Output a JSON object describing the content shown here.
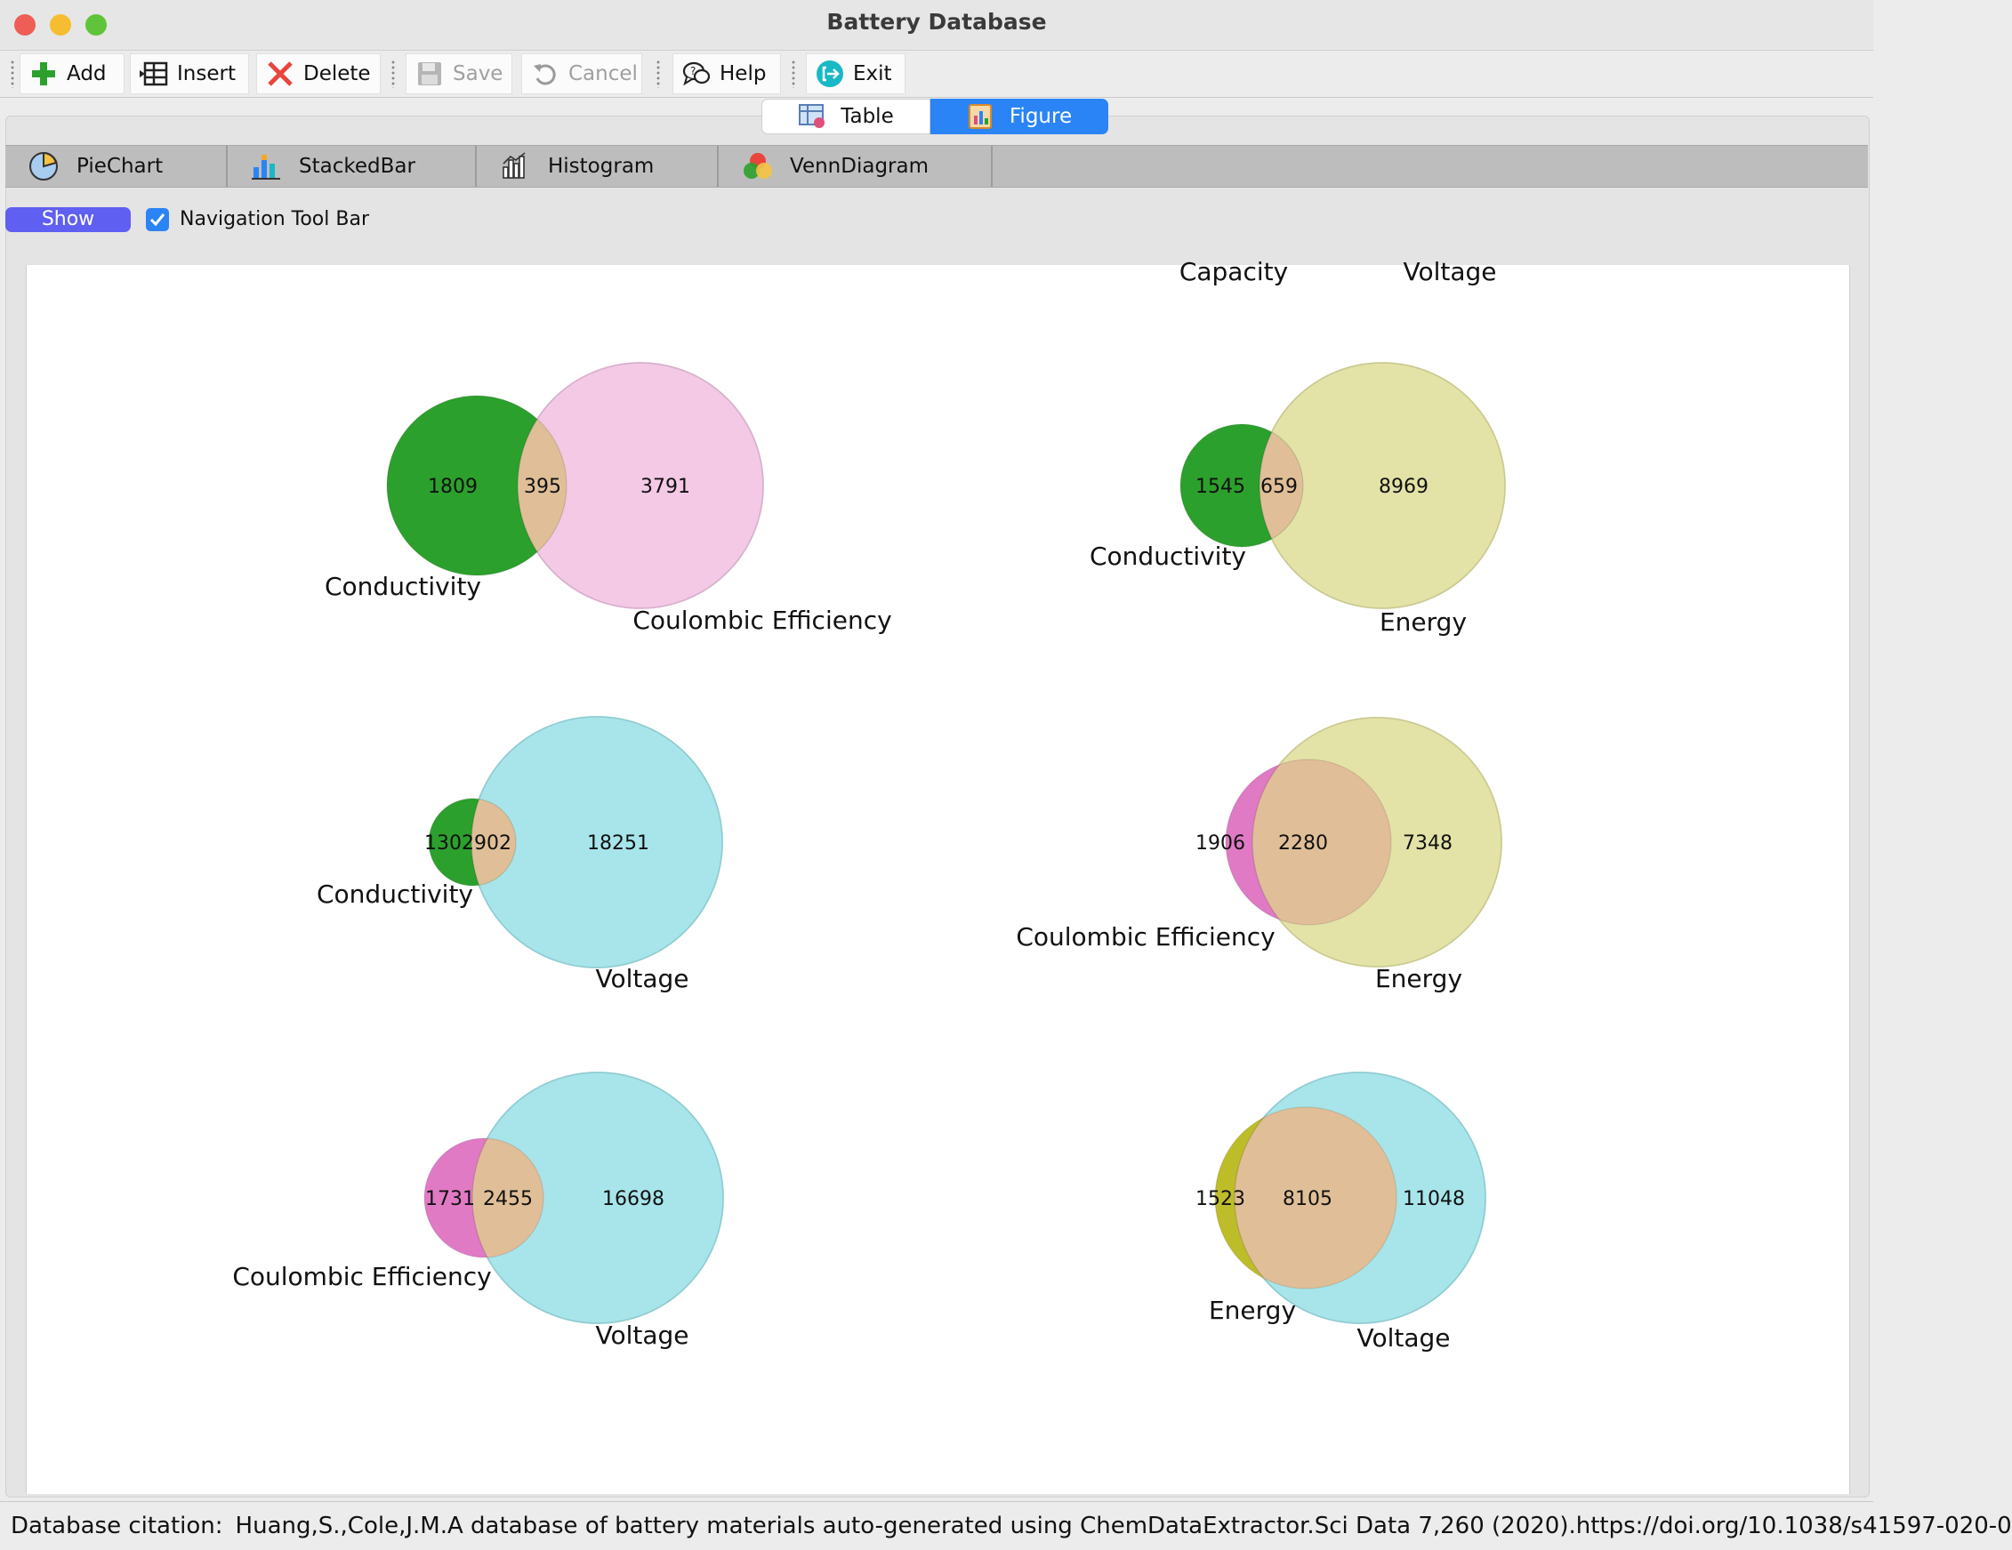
{
  "window": {
    "title": "Battery Database",
    "traffic_colors": [
      "#ee5e56",
      "#f5bd2f",
      "#5fc43a"
    ]
  },
  "toolbar": {
    "add_label": "Add",
    "insert_label": "Insert",
    "delete_label": "Delete",
    "save_label": "Save",
    "cancel_label": "Cancel",
    "help_label": "Help",
    "exit_label": "Exit"
  },
  "view_tabs": {
    "table_label": "Table",
    "figure_label": "Figure",
    "active": "Figure"
  },
  "chart_tabs": {
    "piechart_label": "PieChart",
    "stackedbar_label": "StackedBar",
    "histogram_label": "Histogram",
    "venn_label": "VennDiagram"
  },
  "options": {
    "show_label": "Show",
    "navbar_label": "Navigation Tool Bar",
    "navbar_checked": true
  },
  "chart_data": {
    "type": "venn",
    "partial_labels_top": [
      "Capacity",
      "Voltage"
    ],
    "diagrams": [
      {
        "set_a": "Conductivity",
        "set_b": "Coulombic Efficiency",
        "only_a": "1809",
        "both": "395",
        "only_b": "3791",
        "color_a": "#2ca02c",
        "color_b": "#f2c6e5"
      },
      {
        "set_a": "Conductivity",
        "set_b": "Energy",
        "only_a": "1545",
        "both": "659",
        "only_b": "8969",
        "color_a": "#2ca02c",
        "color_b": "#e2e2a3"
      },
      {
        "set_a": "Conductivity",
        "set_b": "Voltage",
        "only_a": "1302",
        "both": "902",
        "only_b": "18251",
        "color_a": "#2ca02c",
        "color_b": "#a2e4ea"
      },
      {
        "set_a": "Coulombic Efficiency",
        "set_b": "Energy",
        "only_a": "1906",
        "both": "2280",
        "only_b": "7348",
        "color_a": "#e07ac4",
        "color_b": "#e2e2a3"
      },
      {
        "set_a": "Coulombic Efficiency",
        "set_b": "Voltage",
        "only_a": "1731",
        "both": "2455",
        "only_b": "16698",
        "color_a": "#e07ac4",
        "color_b": "#a2e4ea"
      },
      {
        "set_a": "Energy",
        "set_b": "Voltage",
        "only_a": "1523",
        "both": "8105",
        "only_b": "11048",
        "color_a": "#bdbd2a",
        "color_b": "#a2e4ea"
      }
    ],
    "overlap_color": "#e0bf98"
  },
  "status": {
    "label": "Database citation:",
    "citation": "Huang,S.,Cole,J.M.A database of battery materials auto-generated using ChemDataExtractor.Sci Data 7,260 (2020).https://doi.org/10.1038/s41597-020-0"
  }
}
